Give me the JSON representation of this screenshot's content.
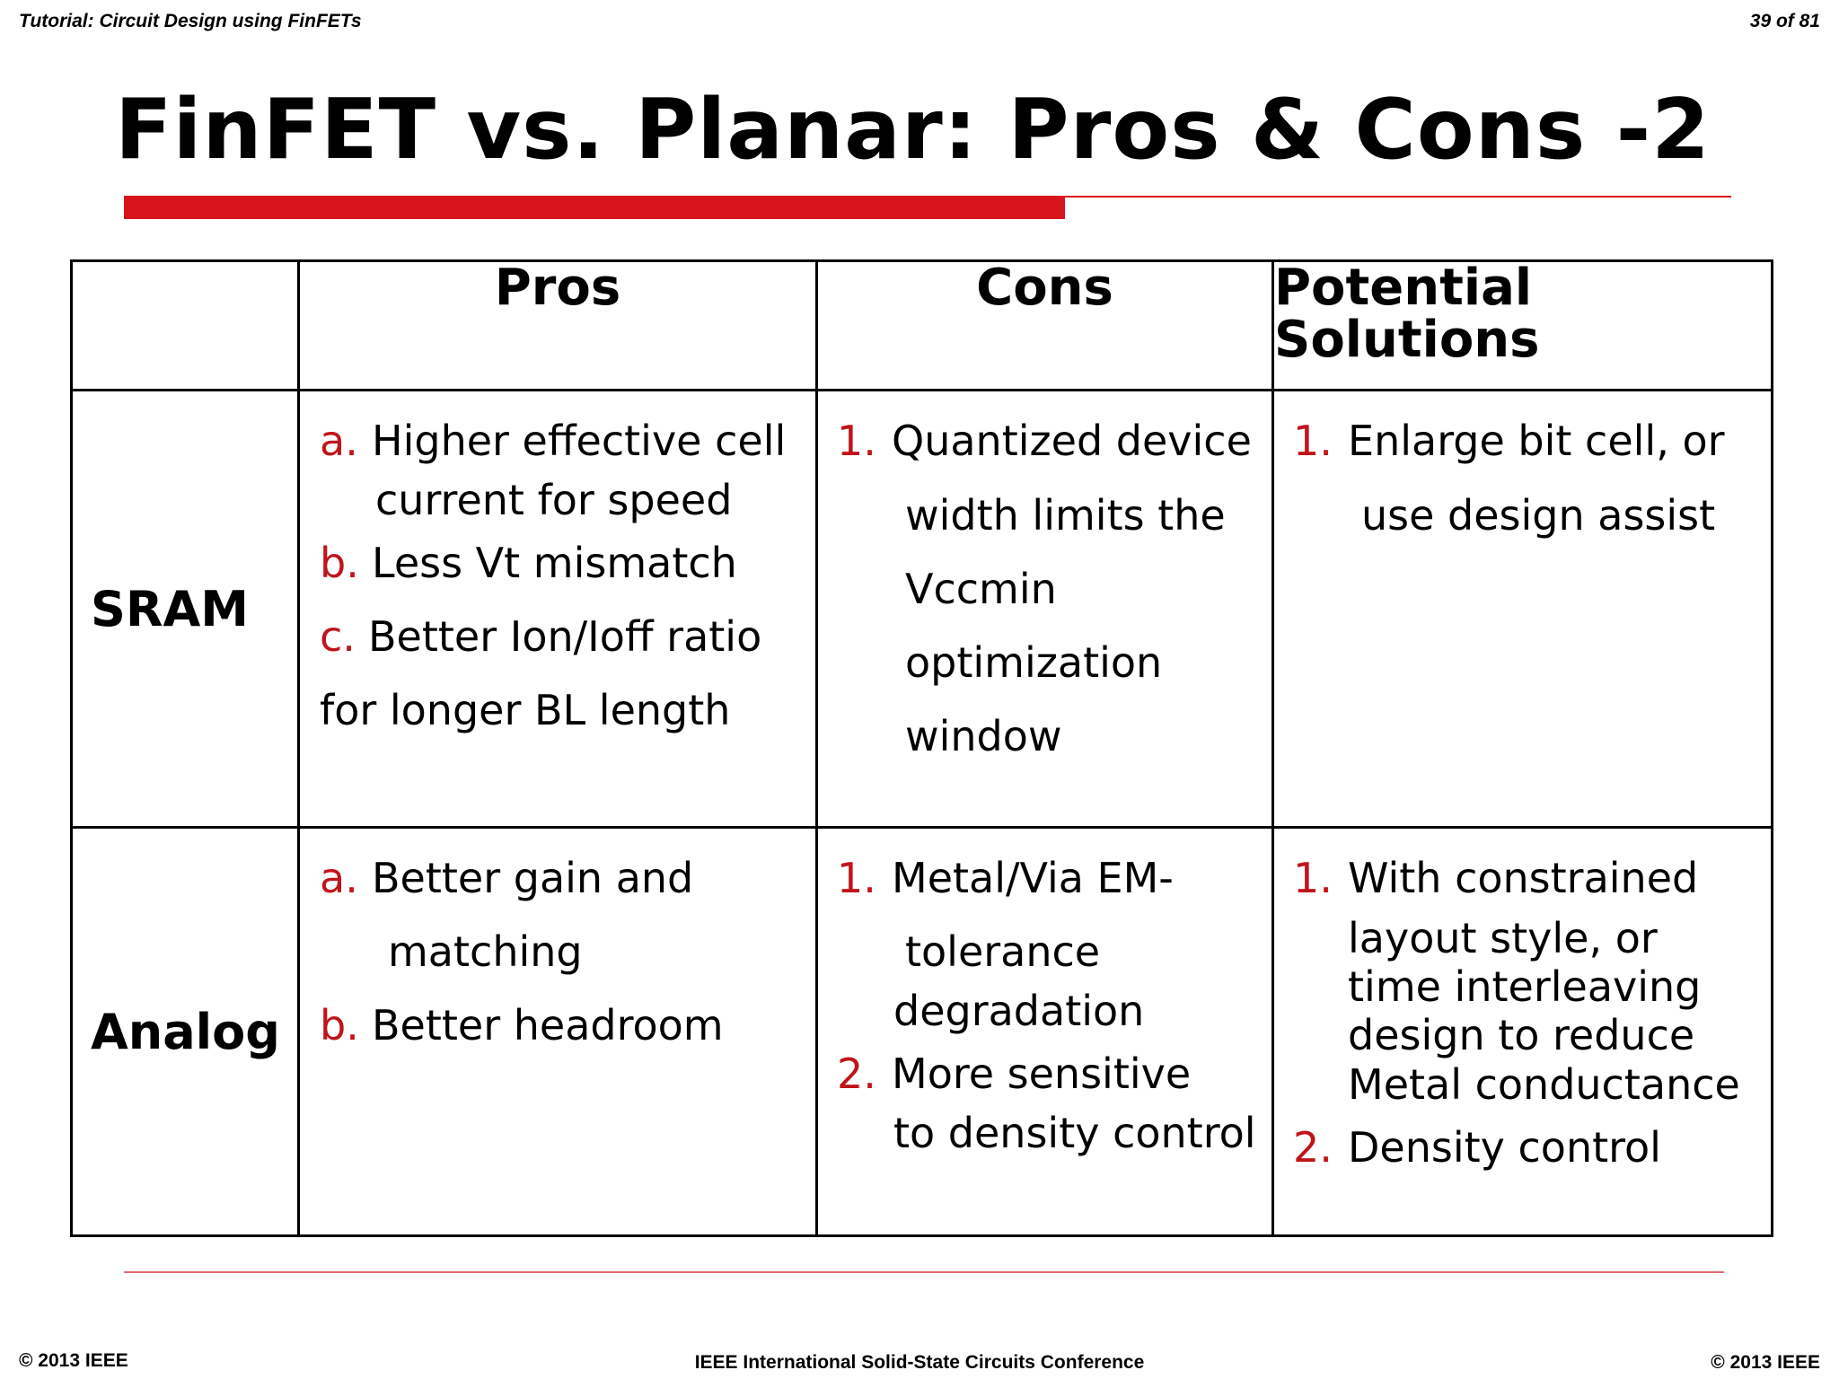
{
  "header": {
    "left": "Tutorial: Circuit Design using FinFETs",
    "right": "39 of 81"
  },
  "title": "FinFET vs. Planar: Pros & Cons -2",
  "colors": {
    "accent": "#d9141b",
    "marker": "#c0141b"
  },
  "table": {
    "headers": [
      "",
      "Pros",
      "Cons",
      "Potential Solutions"
    ],
    "header_lines": {
      "solutions_1": "Potential",
      "solutions_2": "Solutions"
    },
    "rows": [
      {
        "label": "SRAM",
        "pros": {
          "a_marker": "a.",
          "a_line1": "Higher effective cell",
          "a_line2": "current for speed",
          "b_marker": "b.",
          "b_line1": "Less Vt mismatch",
          "c_marker": "c.",
          "c_line1": "Better Ion/Ioff ratio",
          "c_line2": "for longer BL length"
        },
        "cons": {
          "1_marker": "1.",
          "1_line1": "Quantized device",
          "1_line2": "width limits the",
          "1_line3": "Vccmin",
          "1_line4": "optimization",
          "1_line5": "window"
        },
        "solutions": {
          "1_marker": "1.",
          "1_line1": "Enlarge bit cell, or",
          "1_line2": "use design assist"
        }
      },
      {
        "label": "Analog",
        "pros": {
          "a_marker": "a.",
          "a_line1": "Better gain and",
          "a_line2": "matching",
          "b_marker": "b.",
          "b_line1": "Better headroom"
        },
        "cons": {
          "1_marker": "1.",
          "1_line1": "Metal/Via EM-",
          "1_line2": "tolerance",
          "1_line3": "degradation",
          "2_marker": "2.",
          "2_line1": "More sensitive",
          "2_line2": "to density control"
        },
        "solutions": {
          "1_marker": "1.",
          "1_line1": "With constrained",
          "1_line2": "layout style,  or",
          "1_line3": "time interleaving",
          "1_line4": "design to reduce",
          "1_line5": "Metal conductance",
          "2_marker": "2.",
          "2_line1": "Density control"
        }
      }
    ]
  },
  "footer": {
    "left": "© 2013 IEEE",
    "center": "IEEE International Solid-State Circuits Conference",
    "right": "© 2013 IEEE"
  }
}
